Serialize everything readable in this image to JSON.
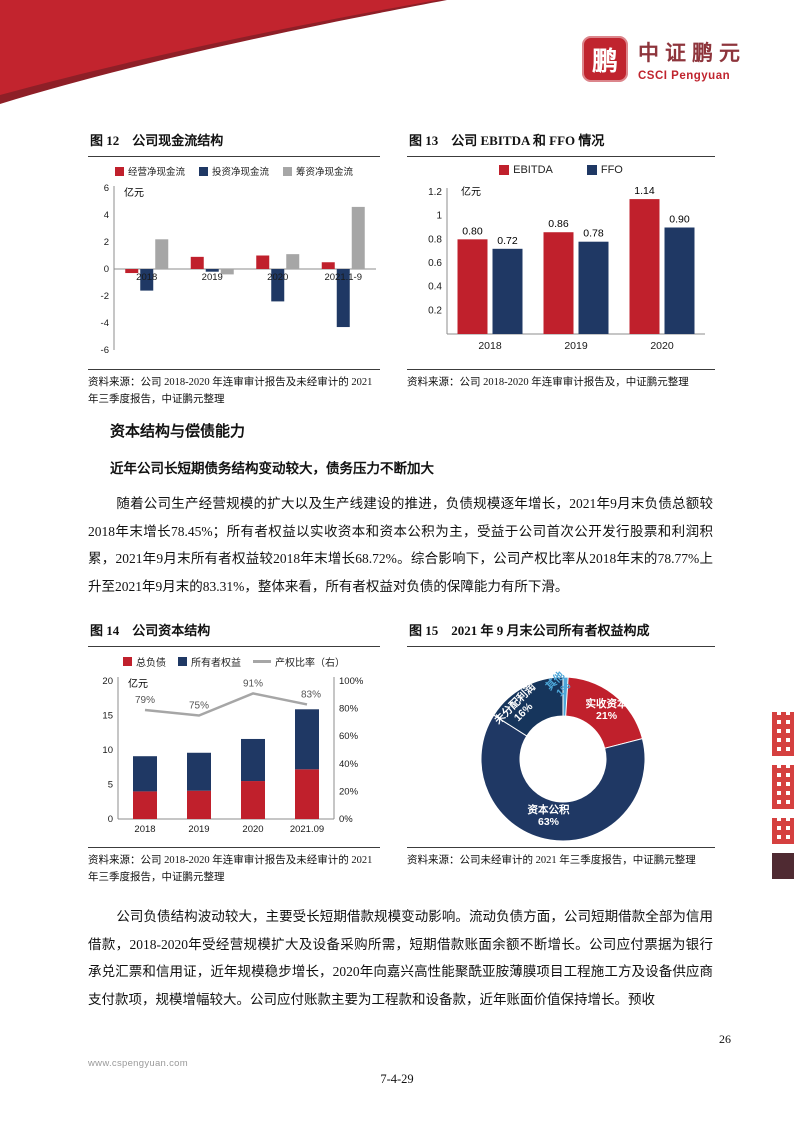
{
  "page": {
    "number": "26",
    "footer_url": "www.cspengyuan.com",
    "footer_code": "7-4-29"
  },
  "logo": {
    "cn": "中证鹏元",
    "en": "CSCI Pengyuan",
    "seal_char": "鹏"
  },
  "colors": {
    "accent_red": "#c0242e",
    "navy": "#1f3864",
    "gray": "#a6a6a6"
  },
  "figures": {
    "fig12": {
      "title": "图 12　公司现金流结构",
      "source": "资料来源：公司 2018-2020 年连审审计报告及未经审计的 2021 年三季度报告，中证鹏元整理"
    },
    "fig13": {
      "title": "图 13　公司 EBITDA 和 FFO 情况",
      "source": "资料来源：公司 2018-2020 年连审审计报告及，中证鹏元整理"
    },
    "fig14": {
      "title": "图 14　公司资本结构",
      "source": "资料来源：公司 2018-2020 年连审审计报告及未经审计的 2021 年三季度报告，中证鹏元整理"
    },
    "fig15": {
      "title": "图 15　2021 年 9 月末公司所有者权益构成",
      "source": "资料来源：公司未经审计的 2021 年三季度报告，中证鹏元整理"
    }
  },
  "section": {
    "heading": "资本结构与偿债能力",
    "subheading": "近年公司长短期债务结构变动较大，债务压力不断加大",
    "paragraph1": "随着公司生产经营规模的扩大以及生产线建设的推进，负债规模逐年增长，2021年9月末负债总额较2018年末增长78.45%；所有者权益以实收资本和资本公积为主，受益于公司首次公开发行股票和利润积累，2021年9月末所有者权益较2018年末增长68.72%。综合影响下，公司产权比率从2018年末的78.77%上升至2021年9月末的83.31%，整体来看，所有者权益对负债的保障能力有所下滑。",
    "paragraph2": "公司负债结构波动较大，主要受长短期借款规模变动影响。流动负债方面，公司短期借款全部为信用借款，2018-2020年受经营规模扩大及设备采购所需，短期借款账面余额不断增长。公司应付票据为银行承兑汇票和信用证，近年规模稳步增长，2020年向嘉兴高性能聚酰亚胺薄膜项目工程施工方及设备供应商支付款项，规模增幅较大。公司应付账款主要为工程款和设备款，近年账面价值保持增长。预收"
  },
  "chart_data": [
    {
      "id": "fig12",
      "type": "bar",
      "title": "图 12 公司现金流结构",
      "unit": "亿元",
      "categories": [
        "2018",
        "2019",
        "2020",
        "2021.1-9"
      ],
      "series": [
        {
          "name": "经营净现金流",
          "color": "#c0202c",
          "values": [
            -0.3,
            0.9,
            1.0,
            0.5
          ]
        },
        {
          "name": "投资净现金流",
          "color": "#1f3864",
          "values": [
            -1.6,
            -0.2,
            -2.4,
            -4.3
          ]
        },
        {
          "name": "筹资净现金流",
          "color": "#a6a6a6",
          "values": [
            2.2,
            -0.4,
            1.1,
            4.6
          ]
        }
      ],
      "ylim": [
        -6,
        6
      ],
      "yticks": [
        "6",
        "4",
        "2",
        "0",
        "-2",
        "-4",
        "-6"
      ],
      "grid": false,
      "legend_position": "top"
    },
    {
      "id": "fig13",
      "type": "bar",
      "title": "图 13 公司 EBITDA 和 FFO 情况",
      "unit": "亿元",
      "categories": [
        "2018",
        "2019",
        "2020"
      ],
      "series": [
        {
          "name": "EBITDA",
          "color": "#c0202c",
          "values": [
            0.8,
            0.86,
            1.14
          ]
        },
        {
          "name": "FFO",
          "color": "#1f3864",
          "values": [
            0.72,
            0.78,
            0.9
          ]
        }
      ],
      "data_labels": [
        "0.80",
        "0.72",
        "0.86",
        "0.78",
        "1.14",
        "0.90"
      ],
      "ylim": [
        0,
        1.2
      ],
      "yticks": [
        "1.2",
        "1",
        "0.8",
        "0.6",
        "0.4",
        "0.2"
      ],
      "grid": false,
      "legend_position": "top"
    },
    {
      "id": "fig14",
      "type": "stacked-bar+line",
      "title": "图 14 公司资本结构",
      "unit": "亿元",
      "categories": [
        "2018",
        "2019",
        "2020",
        "2021.09"
      ],
      "bar_series": [
        {
          "name": "总负债",
          "color": "#c0202c",
          "values": [
            4.0,
            4.1,
            5.5,
            7.2
          ]
        },
        {
          "name": "所有者权益",
          "color": "#1f3864",
          "values": [
            5.1,
            5.5,
            6.1,
            8.7
          ]
        }
      ],
      "line_series": {
        "name": "产权比率（右）",
        "color": "#a6a6a6",
        "axis": "right",
        "values": [
          79,
          75,
          91,
          83
        ],
        "labels": [
          "79%",
          "75%",
          "91%",
          "83%"
        ]
      },
      "ylim_left": [
        0,
        20
      ],
      "yticks_left": [
        "20",
        "15",
        "10",
        "5",
        "0"
      ],
      "ylim_right": [
        0,
        100
      ],
      "yticks_right": [
        "100%",
        "80%",
        "60%",
        "40%",
        "20%",
        "0%"
      ],
      "grid": false,
      "legend_position": "top"
    },
    {
      "id": "fig15",
      "type": "pie",
      "donut": true,
      "title": "图 15 2021 年 9 月末公司所有者权益构成",
      "slices": [
        {
          "name": "实收资本",
          "pct": 21,
          "color": "#c0202c"
        },
        {
          "name": "资本公积",
          "pct": 63,
          "color": "#1f3864"
        },
        {
          "name": "未分配利润",
          "pct": 16,
          "color": "#16355c"
        },
        {
          "name": "其他",
          "pct": 1,
          "color": "#4da6d8"
        }
      ]
    }
  ]
}
